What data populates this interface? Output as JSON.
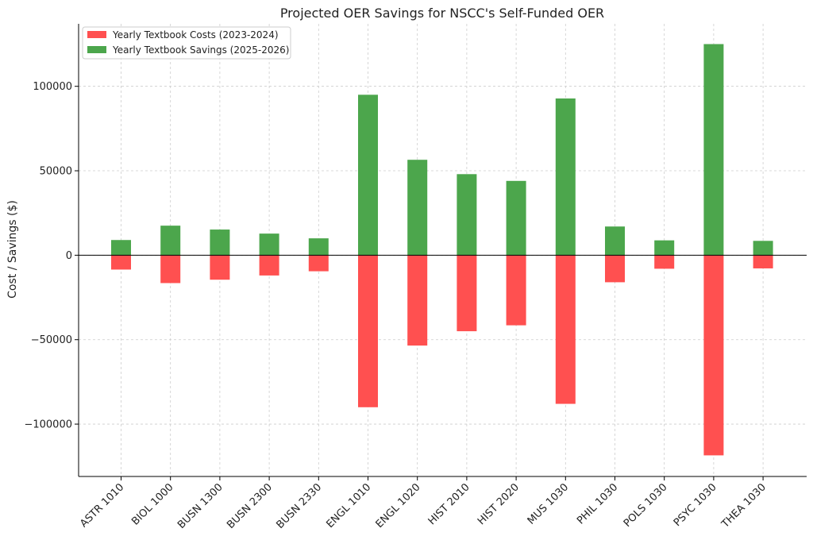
{
  "chart_data": {
    "type": "bar",
    "title": "Projected OER Savings for NSCC's Self-Funded OER",
    "xlabel": "",
    "ylabel": "Cost / Savings ($)",
    "categories": [
      "ASTR 1010",
      "BIOL 1000",
      "BUSN 1300",
      "BUSN 2300",
      "BUSN 2330",
      "ENGL 1010",
      "ENGL 1020",
      "HIST 2010",
      "HIST 2020",
      "MUS 1030",
      "PHIL 1030",
      "POLS 1030",
      "PSYC 1030",
      "THEA 1030"
    ],
    "series": [
      {
        "name": "Yearly Textbook Costs (2023-2024)",
        "color": "#ff5050",
        "values": [
          -8500,
          -16500,
          -14500,
          -12000,
          -9500,
          -90000,
          -53500,
          -45000,
          -41500,
          -88000,
          -16000,
          -8000,
          -118500,
          -7800
        ]
      },
      {
        "name": "Yearly Textbook Savings (2025-2026)",
        "color": "#4ca64c",
        "values": [
          9000,
          17500,
          15200,
          12800,
          10000,
          95000,
          56500,
          48000,
          44000,
          92800,
          17000,
          8800,
          125000,
          8500
        ]
      }
    ],
    "yticks": [
      -100000,
      -50000,
      0,
      50000,
      100000
    ],
    "ytick_labels": [
      "−100000",
      "−50000",
      "0",
      "50000",
      "100000"
    ],
    "ylim": [
      -131000,
      137000
    ],
    "grid": true,
    "legend_position": "top-left"
  }
}
